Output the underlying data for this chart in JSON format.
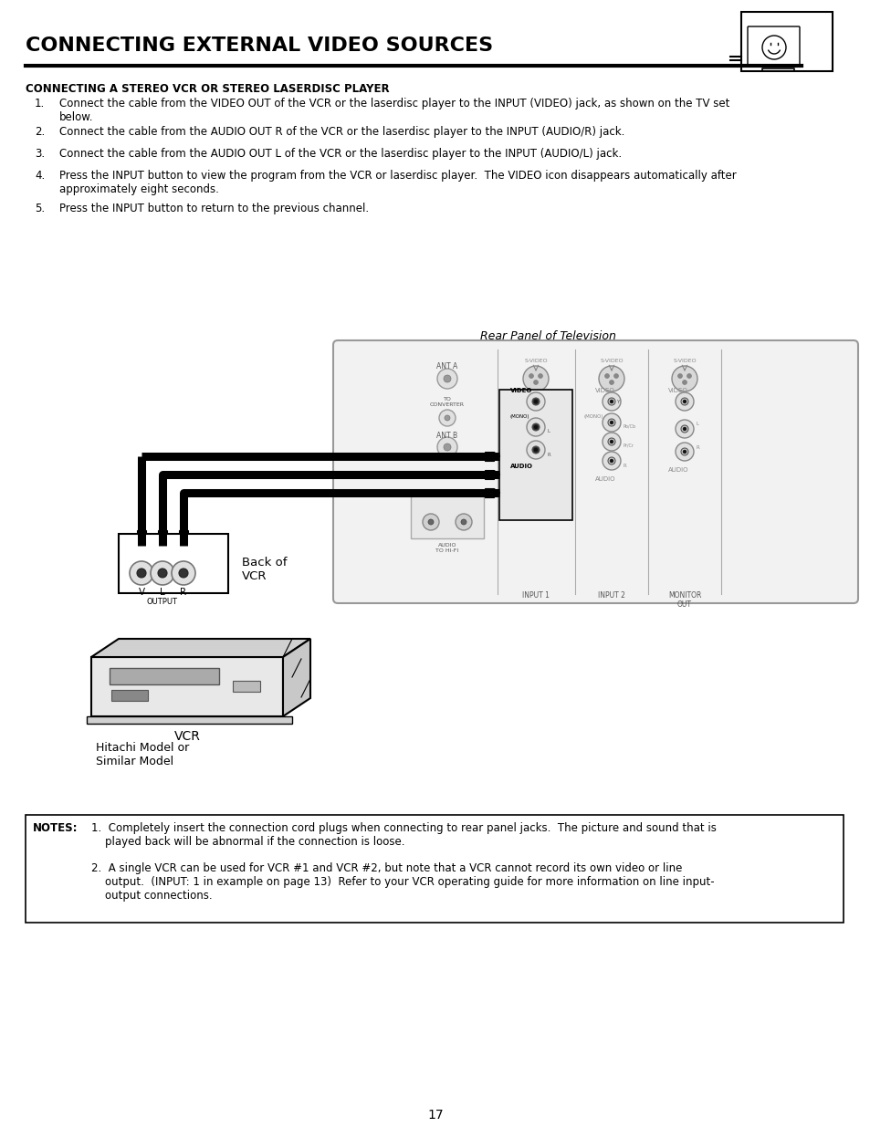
{
  "title": "CONNECTING EXTERNAL VIDEO SOURCES",
  "subtitle": "CONNECTING A STEREO VCR OR STEREO LASERDISC PLAYER",
  "step1": "Connect the cable from the VIDEO OUT of the VCR or the laserdisc player to the INPUT (VIDEO) jack, as shown on the TV set\nbelow.",
  "step2": "Connect the cable from the AUDIO OUT R of the VCR or the laserdisc player to the INPUT (AUDIO/R) jack.",
  "step3": "Connect the cable from the AUDIO OUT L of the VCR or the laserdisc player to the INPUT (AUDIO/L) jack.",
  "step4": "Press the INPUT button to view the program from the VCR or laserdisc player.  The VIDEO icon disappears automatically after\napproximately eight seconds.",
  "step5": "Press the INPUT button to return to the previous channel.",
  "diagram_label": "Rear Panel of Television",
  "vcr_label": "VCR",
  "vcr_sublabel": "Hitachi Model or\nSimilar Model",
  "back_of_vcr_label": "Back of\nVCR",
  "notes_label": "NOTES:",
  "note1": "1.  Completely insert the connection cord plugs when connecting to rear panel jacks.  The picture and sound that is\n    played back will be abnormal if the connection is loose.",
  "note2": "2.  A single VCR can be used for VCR #1 and VCR #2, but note that a VCR cannot record its own video or line\n    output.  (INPUT: 1 in example on page 13)  Refer to your VCR operating guide for more information on line input-\n    output connections.",
  "page_number": "17",
  "bg_color": "#ffffff",
  "text_color": "#000000"
}
